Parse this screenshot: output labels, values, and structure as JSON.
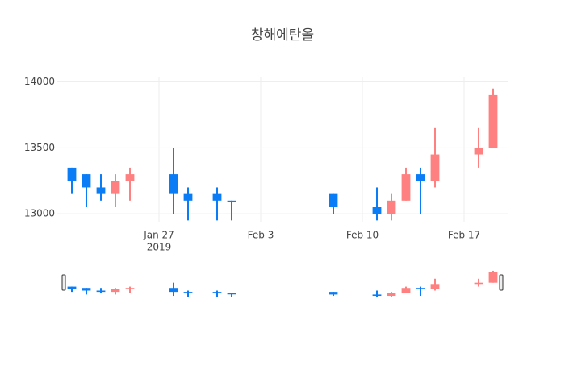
{
  "chart_data": {
    "type": "candlestick",
    "title": "창해에탄올",
    "increasing_color": "#ff8080",
    "decreasing_color": "#0a7cf5",
    "x": [
      "2019-01-21",
      "2019-01-22",
      "2019-01-23",
      "2019-01-24",
      "2019-01-25",
      "2019-01-28",
      "2019-01-29",
      "2019-01-31",
      "2019-02-01",
      "2019-02-08",
      "2019-02-11",
      "2019-02-12",
      "2019-02-13",
      "2019-02-14",
      "2019-02-15",
      "2019-02-18",
      "2019-02-19"
    ],
    "open": [
      13350,
      13300,
      13200,
      13150,
      13250,
      13300,
      13150,
      13150,
      13100,
      13150,
      13050,
      13000,
      13100,
      13300,
      13250,
      13450,
      13500
    ],
    "high": [
      13350,
      13300,
      13300,
      13300,
      13350,
      13500,
      13200,
      13200,
      13100,
      13150,
      13200,
      13150,
      13350,
      13350,
      13650,
      13650,
      13950
    ],
    "low": [
      13150,
      13050,
      13100,
      13050,
      13100,
      13000,
      12950,
      12950,
      12950,
      13000,
      12950,
      12950,
      13100,
      13000,
      13200,
      13350,
      13500
    ],
    "close": [
      13250,
      13200,
      13150,
      13250,
      13300,
      13150,
      13100,
      13100,
      13090,
      13050,
      13000,
      13100,
      13300,
      13250,
      13450,
      13500,
      13900
    ],
    "xlim": [
      "2019-01-20",
      "2019-02-20"
    ],
    "xticks": [
      {
        "value": "2019-01-27",
        "label": "Jan 27",
        "sublabel": "2019"
      },
      {
        "value": "2019-02-03",
        "label": "Feb 3"
      },
      {
        "value": "2019-02-10",
        "label": "Feb 10"
      },
      {
        "value": "2019-02-17",
        "label": "Feb 17"
      }
    ],
    "ylim": [
      12940,
      14040
    ],
    "yticks": [
      13000,
      13500,
      14000
    ],
    "grid": true,
    "rangeslider": true
  }
}
